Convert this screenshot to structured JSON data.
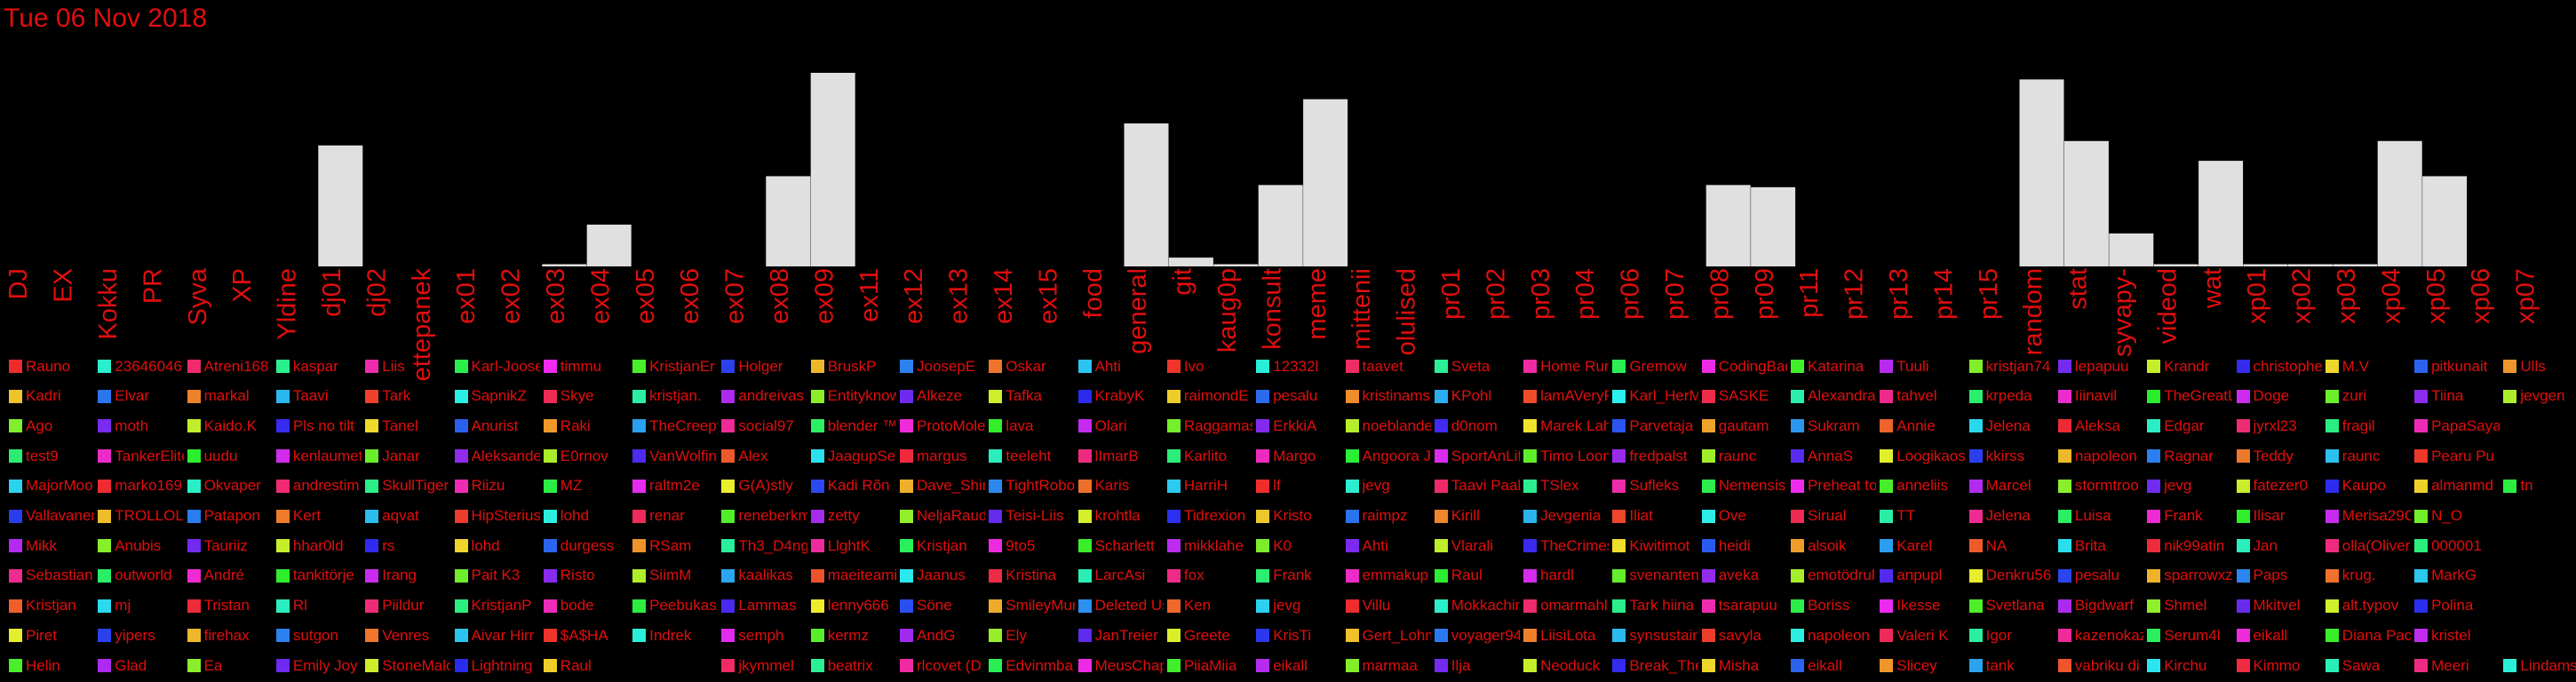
{
  "title": "Tue 06 Nov 2018",
  "colors": {
    "text": "#e10e0e",
    "bar": "#e0e0e0",
    "background": "#000000"
  },
  "chart_data": {
    "type": "bar",
    "categories": [
      "DJ",
      "EX",
      "Kokku",
      "PR",
      "Syva",
      "XP",
      "Yldine",
      "dj01",
      "dj02",
      "ettepanek",
      "ex01",
      "ex02",
      "ex03",
      "ex04",
      "ex05",
      "ex06",
      "ex07",
      "ex08",
      "ex09",
      "ex11",
      "ex12",
      "ex13",
      "ex14",
      "ex15",
      "food",
      "general",
      "git",
      "kaug0p",
      "konsult",
      "meme",
      "mittenii",
      "olulised",
      "pr01",
      "pr02",
      "pr03",
      "pr04",
      "pr06",
      "pr07",
      "pr08",
      "pr09",
      "pr11",
      "pr12",
      "pr13",
      "pr14",
      "pr15",
      "random",
      "stat",
      "syvapy-",
      "videod",
      "wat",
      "xp01",
      "xp02",
      "xp03",
      "xp04",
      "xp05",
      "xp06",
      "xp07"
    ],
    "values": [
      0,
      0,
      0,
      0,
      0,
      0,
      0,
      55,
      0,
      0,
      0,
      0,
      1,
      19,
      0,
      0,
      0,
      41,
      88,
      0,
      0,
      0,
      0,
      0,
      0,
      65,
      4,
      1,
      37,
      76,
      0,
      0,
      0,
      0,
      0,
      0,
      0,
      0,
      37,
      36,
      0,
      0,
      0,
      0,
      0,
      85,
      57,
      15,
      1,
      48,
      1,
      1,
      1,
      57,
      41,
      0,
      0
    ],
    "ylim": [
      0,
      88
    ]
  },
  "legend": [
    [
      "Rauno",
      "Kadri",
      "Ago",
      "test9",
      "MajorMoo",
      "Vallavanem",
      "Mikk",
      "Sebastian",
      "Kristjan",
      "Piret",
      "Helin"
    ],
    [
      "23646046",
      "Elvar",
      "moth",
      "TankerElite",
      "marko169",
      "TROLLOLOL",
      "Anubis",
      "outworld",
      "mj",
      "yipers",
      "Glad"
    ],
    [
      "Atreni168",
      "markal",
      "Kaido.K",
      "uudu",
      "Okvaper",
      "Patapon",
      "Tauriiz",
      "André",
      "Tristan",
      "firehax",
      "Ea"
    ],
    [
      "kaspar",
      "Taavi",
      "Pls no tilt",
      "kenlaumets",
      "andrestim",
      "Kert",
      "hhar0ld",
      "tankitörje",
      "Rl",
      "sutgon",
      "Emily Joy"
    ],
    [
      "Liis",
      "Tark",
      "Tanel",
      "Janar",
      "SkullTiger",
      "aqvat",
      "rs",
      "Irang",
      "Piildur",
      "Venres",
      "StoneMalo"
    ],
    [
      "Karl-Joosep",
      "SapnikZ",
      "Anurist",
      "Aleksander",
      "Riizu",
      "HipSterius",
      "lohd",
      "Pait K3",
      "KristjanP",
      "Aivar Hirr",
      "Lightning"
    ],
    [
      "timmu",
      "Skye",
      "Raki",
      "E0rnov",
      "MZ",
      "lohd",
      "durgess",
      "Risto",
      "bode",
      "$A$HA",
      "Raul"
    ],
    [
      "KristjanEr",
      "kristjan.",
      "TheCreepy",
      "VanWolfing",
      "raltm2e",
      "renar",
      "RSam",
      "SiimM",
      "Peebukas",
      "Indrek",
      ""
    ],
    [
      "Holger",
      "andreivas",
      "social97",
      "Alex",
      "G(A)stly",
      "reneberkm",
      "Th3_D4ng3",
      "kaalikas",
      "Lammas",
      "semph",
      "jkymmel"
    ],
    [
      "BruskP",
      "Entityknow",
      "blender ™",
      "JaagupSel",
      "Kadi Rõn",
      "zetty",
      "LlghtK",
      "maeiteami",
      "lenny666",
      "kermz",
      "beatrix"
    ],
    [
      "JoosepE",
      "Alkeze",
      "ProtoMole",
      "margus",
      "Dave_Shin",
      "NeljaRaud",
      "Kristjan",
      "Jaanus",
      "Söne",
      "AndG",
      "rlcovet (D"
    ],
    [
      "Oskar",
      "Tafka",
      "lava",
      "teeleht",
      "TightRobot",
      "Teisi-Liis",
      "9to5",
      "Kristina",
      "SmileyMur",
      "Ely",
      "Edvinmba"
    ],
    [
      "Ahti",
      "KrabyK",
      "Olari",
      "lImarB",
      "Karis",
      "krohtla",
      "Scharlett",
      "LarcAsi",
      "Deleted Us",
      "JanTreier",
      "MeusChap"
    ],
    [
      "Ivo",
      "raimondE",
      "Raggamas",
      "Karlito",
      "HarriH",
      "Tidrexion",
      "mikklahe",
      "fox",
      "Ken",
      "Greete",
      "PiiaMiia"
    ],
    [
      "12332l",
      "pesalu",
      "ErkkiA",
      "Margo",
      "lf",
      "Kristo",
      "K0",
      "Frank",
      "jevg",
      "KrisTi",
      "eikall"
    ],
    [
      "taavet",
      "kristinams",
      "noeblande",
      "Angoora J",
      "jevg",
      "raimpz",
      "Ahti",
      "emmakup",
      "Villu",
      "Gert_Lohm",
      "marmaa"
    ],
    [
      "Sveta",
      "KPohl",
      "d0nom",
      "SportAnLif",
      "Taavi Paal",
      "Kirill",
      "Vlarali",
      "Raul",
      "Mokkachin",
      "voyager94",
      "Ilja"
    ],
    [
      "Home Run",
      "lamAVeryF",
      "Marek Lah",
      "Timo Loon",
      "TSlex",
      "Jevgenia",
      "TheCrimes",
      "hardl",
      "omarmahl",
      "LiisiLota",
      "Neoduck"
    ],
    [
      "Gremow",
      "Karl_HerM",
      "Parvetaja",
      "fredpalst",
      "Sufleks",
      "Iliat",
      "Kiwitimot",
      "svenanten",
      "Tark hiina",
      "synsustair",
      "Break_The"
    ],
    [
      "CodingBad",
      "SASKE",
      "gautam",
      "raunc",
      "Nemensis",
      "Ove",
      "heidi",
      "aveka",
      "tsarapuu",
      "savyla",
      "Misha"
    ],
    [
      "Katarina",
      "Alexandra",
      "Sukram",
      "AnnaS",
      "Preheat to",
      "Sirual",
      "alsoik",
      "emotödrul",
      "Boriss",
      "napoleon",
      "eikall"
    ],
    [
      "Tuuli",
      "tahvel",
      "Annie",
      "Loogikaosa",
      "anneliis",
      "TT",
      "Karel",
      "anpupl",
      "Ikesse",
      "Valeri K",
      "Slicey"
    ],
    [
      "kristjan74",
      "krpeda",
      "Jelena",
      "kkirss",
      "Marcel",
      "Jelena",
      "NA",
      "Denkru56",
      "Svetlana",
      "Igor",
      "tank"
    ],
    [
      "lepapuu",
      "Iiinavil",
      "Aleksa",
      "napoleon",
      "stormtroo",
      "Luisa",
      "Brita",
      "pesalu",
      "Bigdwarf",
      "kazenokaz",
      "vabriku di"
    ],
    [
      "Krandr",
      "TheGreatL",
      "Edgar",
      "Ragnar",
      "jevg",
      "Frank",
      "nik99atin",
      "sparrowxz",
      "Shmel",
      "Serum4l",
      "Kirchu"
    ],
    [
      "christophe",
      "Doge",
      "jyrxl23",
      "Teddy",
      "fatezer0",
      "Ilisar",
      "Jan",
      "Paps",
      "Mkitvel",
      "eikall",
      "Kimmo"
    ],
    [
      "M.V",
      "zuri",
      "fragil",
      "raunc",
      "Kaupo",
      "Merisa29C",
      "olla(Oliver",
      "krug.",
      "alt.typov",
      "Diana Pac",
      "Sawa"
    ],
    [
      "pitkunait",
      "Tiina",
      "PapaSaya",
      "Pearu Pu",
      "almanmd",
      "N_O",
      "000001",
      "MarkG",
      "Polina",
      "kristel",
      "Meeri"
    ],
    [
      "Ulls",
      "jevgen",
      "",
      "",
      "tn",
      "",
      "",
      "",
      "",
      "",
      "Lindams"
    ]
  ]
}
